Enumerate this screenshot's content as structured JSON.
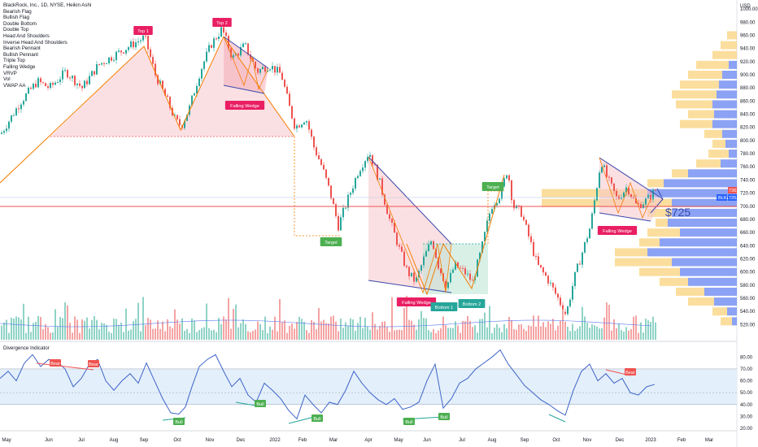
{
  "header": {
    "title": "BlackRock, Inc., 1D, NYSE, Heikin Ashi",
    "currency": "USD",
    "indicators": [
      "Bearish Flag",
      "Bullish Flag",
      "Double Bottom",
      "Double Top",
      "Head And Shoulders",
      "Inverse Head And Shoulders",
      "Bearish Pennant",
      "Bullish Pennant",
      "Triple Top",
      "Falling Wedge",
      "VRVP",
      "Vol",
      "VWAP AA"
    ]
  },
  "oscillator": {
    "title": "Divergence Indicator"
  },
  "annotations": {
    "top1": "Top 1",
    "top2": "Top 2",
    "falling_wedge_1": "Falling Wedge",
    "falling_wedge_2": "Falling Wedge",
    "falling_wedge_3": "Falling Wedge",
    "target_1": "Target",
    "target_2": "Target",
    "bottom1": "Bottom 1",
    "bottom2": "Bottom 2",
    "price_note": "$725",
    "bear1": "Bear",
    "bear2": "Bear",
    "bear3": "Bear",
    "bull1": "Bull",
    "bull2": "Bull",
    "bull3": "Bull",
    "bull4": "Bull",
    "bull5": "Bull"
  },
  "price_tags": {
    "line_price": "736.08",
    "ticker": "BLK",
    "last_price": "725.11"
  },
  "colors": {
    "up": "#26a69a",
    "down": "#ef5350",
    "pattern_line": "#f57c00",
    "wedge_line": "#3949ab",
    "vrvp_blue": "#5b7bf0",
    "vrvp_yellow": "#f7c34c",
    "rsi_line": "#3e64c9",
    "band": "#e3effb"
  },
  "chart_data": [
    {
      "type": "candlestick",
      "title": "BlackRock, Inc., 1D, NYSE, Heikin Ashi",
      "x_tick_labels": [
        "May",
        "Jun",
        "Jul",
        "Aug",
        "Sep",
        "Oct",
        "Nov",
        "Dec",
        "2022",
        "Feb",
        "Mar",
        "Apr",
        "May",
        "Jun",
        "Jul",
        "Aug",
        "Sep",
        "Oct",
        "Nov",
        "Dec",
        "2023",
        "Feb",
        "Mar"
      ],
      "y_tick_labels": [
        "520.00",
        "540.00",
        "560.00",
        "580.00",
        "600.00",
        "620.00",
        "640.00",
        "660.00",
        "680.00",
        "700.00",
        "720.00",
        "740.00",
        "760.00",
        "780.00",
        "800.00",
        "820.00",
        "840.00",
        "860.00",
        "880.00",
        "900.00",
        "920.00",
        "940.00",
        "960.00",
        "980.00",
        "1000.00"
      ],
      "ylim": [
        510,
        1010
      ],
      "price_path": [
        [
          0,
          810
        ],
        [
          25,
          860
        ],
        [
          45,
          890
        ],
        [
          60,
          880
        ],
        [
          80,
          905
        ],
        [
          100,
          880
        ],
        [
          120,
          915
        ],
        [
          140,
          930
        ],
        [
          160,
          945
        ],
        [
          177,
          957
        ],
        [
          190,
          900
        ],
        [
          205,
          860
        ],
        [
          215,
          830
        ],
        [
          222,
          822
        ],
        [
          232,
          850
        ],
        [
          245,
          905
        ],
        [
          258,
          945
        ],
        [
          272,
          970
        ],
        [
          285,
          925
        ],
        [
          300,
          945
        ],
        [
          315,
          905
        ],
        [
          330,
          915
        ],
        [
          345,
          900
        ],
        [
          355,
          850
        ],
        [
          362,
          820
        ],
        [
          375,
          835
        ],
        [
          385,
          790
        ],
        [
          395,
          760
        ],
        [
          405,
          720
        ],
        [
          415,
          670
        ],
        [
          425,
          705
        ],
        [
          440,
          755
        ],
        [
          453,
          783
        ],
        [
          465,
          740
        ],
        [
          478,
          680
        ],
        [
          490,
          635
        ],
        [
          500,
          600
        ],
        [
          510,
          585
        ],
        [
          520,
          620
        ],
        [
          530,
          650
        ],
        [
          538,
          610
        ],
        [
          548,
          578
        ],
        [
          558,
          610
        ],
        [
          570,
          600
        ],
        [
          580,
          585
        ],
        [
          590,
          630
        ],
        [
          603,
          700
        ],
        [
          615,
          720
        ],
        [
          623,
          757
        ],
        [
          630,
          700
        ],
        [
          640,
          690
        ],
        [
          650,
          650
        ],
        [
          660,
          610
        ],
        [
          672,
          590
        ],
        [
          685,
          560
        ],
        [
          695,
          535
        ],
        [
          705,
          590
        ],
        [
          715,
          630
        ],
        [
          725,
          670
        ],
        [
          738,
          770
        ],
        [
          745,
          745
        ],
        [
          758,
          710
        ],
        [
          770,
          730
        ],
        [
          782,
          700
        ],
        [
          795,
          710
        ],
        [
          805,
          725
        ]
      ],
      "last_price": 725.11
    },
    {
      "type": "line",
      "title": "Divergence Indicator",
      "y_tick_labels": [
        "20.00",
        "30.00",
        "40.00",
        "50.00",
        "60.00",
        "70.00",
        "80.00"
      ],
      "ylim": [
        20,
        85
      ],
      "band": [
        40,
        70
      ],
      "values": [
        [
          0,
          62
        ],
        [
          10,
          68
        ],
        [
          20,
          60
        ],
        [
          30,
          75
        ],
        [
          40,
          82
        ],
        [
          50,
          72
        ],
        [
          60,
          78
        ],
        [
          70,
          76
        ],
        [
          80,
          70
        ],
        [
          90,
          55
        ],
        [
          100,
          62
        ],
        [
          110,
          74
        ],
        [
          120,
          78
        ],
        [
          130,
          60
        ],
        [
          140,
          52
        ],
        [
          150,
          60
        ],
        [
          160,
          66
        ],
        [
          170,
          58
        ],
        [
          180,
          75
        ],
        [
          190,
          60
        ],
        [
          200,
          45
        ],
        [
          210,
          33
        ],
        [
          220,
          32
        ],
        [
          228,
          38
        ],
        [
          236,
          55
        ],
        [
          245,
          72
        ],
        [
          255,
          78
        ],
        [
          265,
          82
        ],
        [
          275,
          68
        ],
        [
          285,
          55
        ],
        [
          295,
          62
        ],
        [
          305,
          48
        ],
        [
          315,
          42
        ],
        [
          325,
          58
        ],
        [
          335,
          52
        ],
        [
          345,
          45
        ],
        [
          355,
          35
        ],
        [
          365,
          28
        ],
        [
          375,
          48
        ],
        [
          385,
          40
        ],
        [
          395,
          33
        ],
        [
          405,
          42
        ],
        [
          415,
          40
        ],
        [
          425,
          52
        ],
        [
          435,
          68
        ],
        [
          445,
          58
        ],
        [
          455,
          50
        ],
        [
          465,
          44
        ],
        [
          475,
          40
        ],
        [
          485,
          45
        ],
        [
          495,
          36
        ],
        [
          505,
          38
        ],
        [
          515,
          42
        ],
        [
          525,
          60
        ],
        [
          535,
          74
        ],
        [
          545,
          37
        ],
        [
          555,
          45
        ],
        [
          565,
          58
        ],
        [
          575,
          62
        ],
        [
          585,
          70
        ],
        [
          595,
          75
        ],
        [
          605,
          80
        ],
        [
          615,
          86
        ],
        [
          625,
          74
        ],
        [
          635,
          65
        ],
        [
          645,
          56
        ],
        [
          655,
          50
        ],
        [
          665,
          44
        ],
        [
          675,
          40
        ],
        [
          685,
          35
        ],
        [
          695,
          31
        ],
        [
          705,
          52
        ],
        [
          715,
          68
        ],
        [
          725,
          74
        ],
        [
          735,
          60
        ],
        [
          745,
          66
        ],
        [
          755,
          58
        ],
        [
          765,
          62
        ],
        [
          775,
          50
        ],
        [
          785,
          48
        ],
        [
          795,
          55
        ],
        [
          805,
          57
        ]
      ]
    }
  ]
}
